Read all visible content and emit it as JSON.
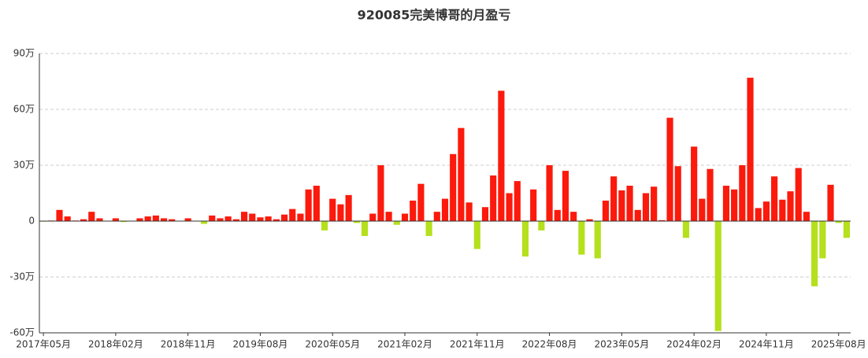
{
  "chart_data": {
    "type": "bar",
    "title": "920085完美博哥的月盈亏",
    "categories": [
      "2017年05月",
      null,
      null,
      null,
      null,
      null,
      null,
      null,
      null,
      "2018年02月",
      null,
      null,
      null,
      null,
      null,
      null,
      null,
      null,
      "2018年11月",
      null,
      null,
      null,
      null,
      null,
      null,
      null,
      null,
      "2019年08月",
      null,
      null,
      null,
      null,
      null,
      null,
      null,
      null,
      "2020年05月",
      null,
      null,
      null,
      null,
      null,
      null,
      null,
      null,
      "2021年02月",
      null,
      null,
      null,
      null,
      null,
      null,
      null,
      null,
      "2021年11月",
      null,
      null,
      null,
      null,
      null,
      null,
      null,
      null,
      "2022年08月",
      null,
      null,
      null,
      null,
      null,
      null,
      null,
      null,
      "2023年05月",
      null,
      null,
      null,
      null,
      null,
      null,
      null,
      null,
      "2024年02月",
      null,
      null,
      null,
      null,
      null,
      null,
      null,
      null,
      "2024年11月",
      null,
      null,
      null,
      null,
      null,
      null,
      null,
      null,
      "2025年08月",
      null
    ],
    "values": [
      -0.3,
      0.3,
      6,
      2.5,
      0.3,
      1,
      5,
      1.5,
      0,
      1.5,
      -0.5,
      0,
      1.5,
      2.5,
      3,
      1.5,
      1,
      0,
      1.5,
      0,
      -1.5,
      3,
      1.5,
      2.5,
      1,
      5,
      4,
      2,
      2.5,
      1,
      3.5,
      6.5,
      4,
      17,
      19,
      -5,
      12,
      9,
      14,
      -1,
      -8,
      4,
      30,
      5,
      -2,
      4,
      11,
      20,
      -8,
      5,
      12,
      36,
      50,
      10,
      -15,
      7.5,
      24.5,
      70,
      15,
      21.5,
      -19,
      17,
      -5,
      30,
      6,
      27,
      5,
      -18,
      1,
      -20,
      11,
      24,
      16.5,
      19,
      6,
      15,
      18.5,
      0.5,
      55.5,
      29.5,
      -9,
      40,
      12,
      28,
      -59,
      19,
      17,
      30,
      77,
      7,
      10.5,
      24,
      11.5,
      16,
      28.5,
      5,
      -35,
      -20,
      19.5,
      -1,
      -9
    ],
    "positive_color": "#fb1a0c",
    "negative_color": "#b4e01c",
    "ylim": [
      -60,
      90
    ],
    "yticks": [
      {
        "value": -60,
        "label": "-60万"
      },
      {
        "value": -30,
        "label": "-30万"
      },
      0,
      {
        "value": 30,
        "label": "30万"
      },
      {
        "value": 60,
        "label": "60万"
      },
      {
        "value": 90,
        "label": "90万"
      }
    ],
    "grid": true
  }
}
